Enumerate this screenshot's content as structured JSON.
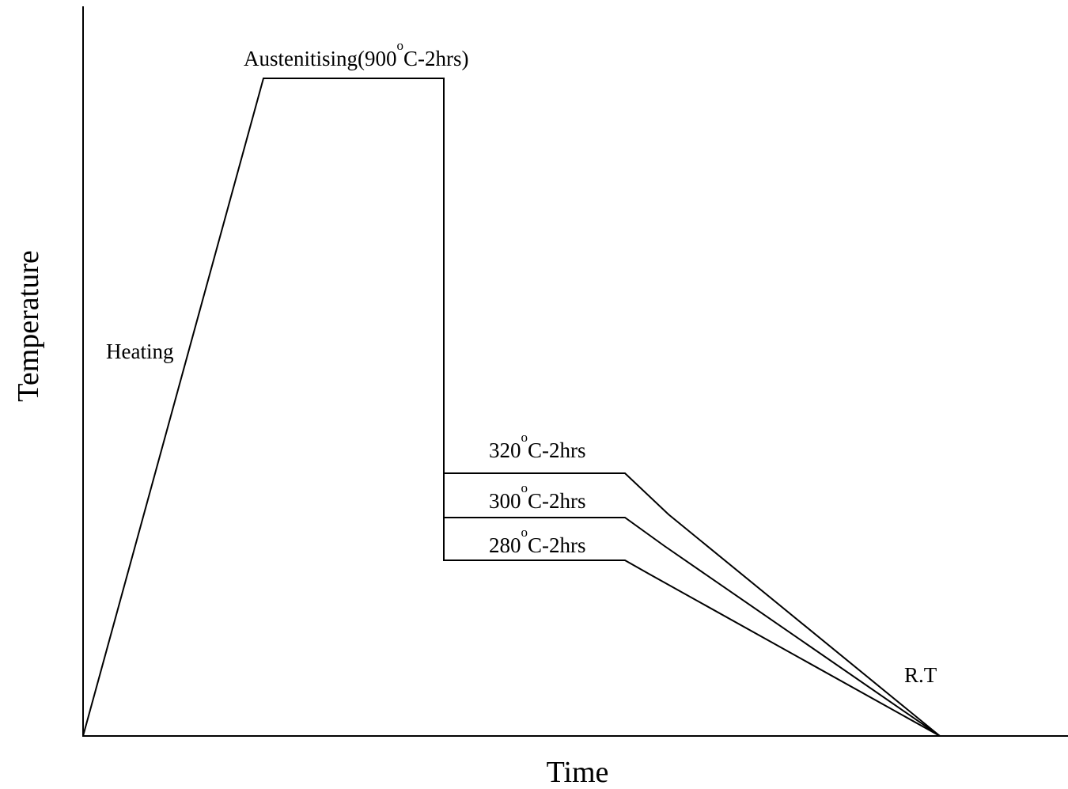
{
  "axes": {
    "y_title": "Temperature",
    "x_title": "Time"
  },
  "stages": {
    "heating": "Heating",
    "austenitising": {
      "prefix": "Austenitising(900",
      "degree": "o",
      "suffix": "C-2hrs)"
    },
    "holds": [
      {
        "prefix": "320",
        "degree": "o",
        "suffix": "C-2hrs"
      },
      {
        "prefix": "300",
        "degree": "o",
        "suffix": "C-2hrs"
      },
      {
        "prefix": "280",
        "degree": "o",
        "suffix": "C-2hrs"
      }
    ],
    "room_temperature": "R.T"
  }
}
